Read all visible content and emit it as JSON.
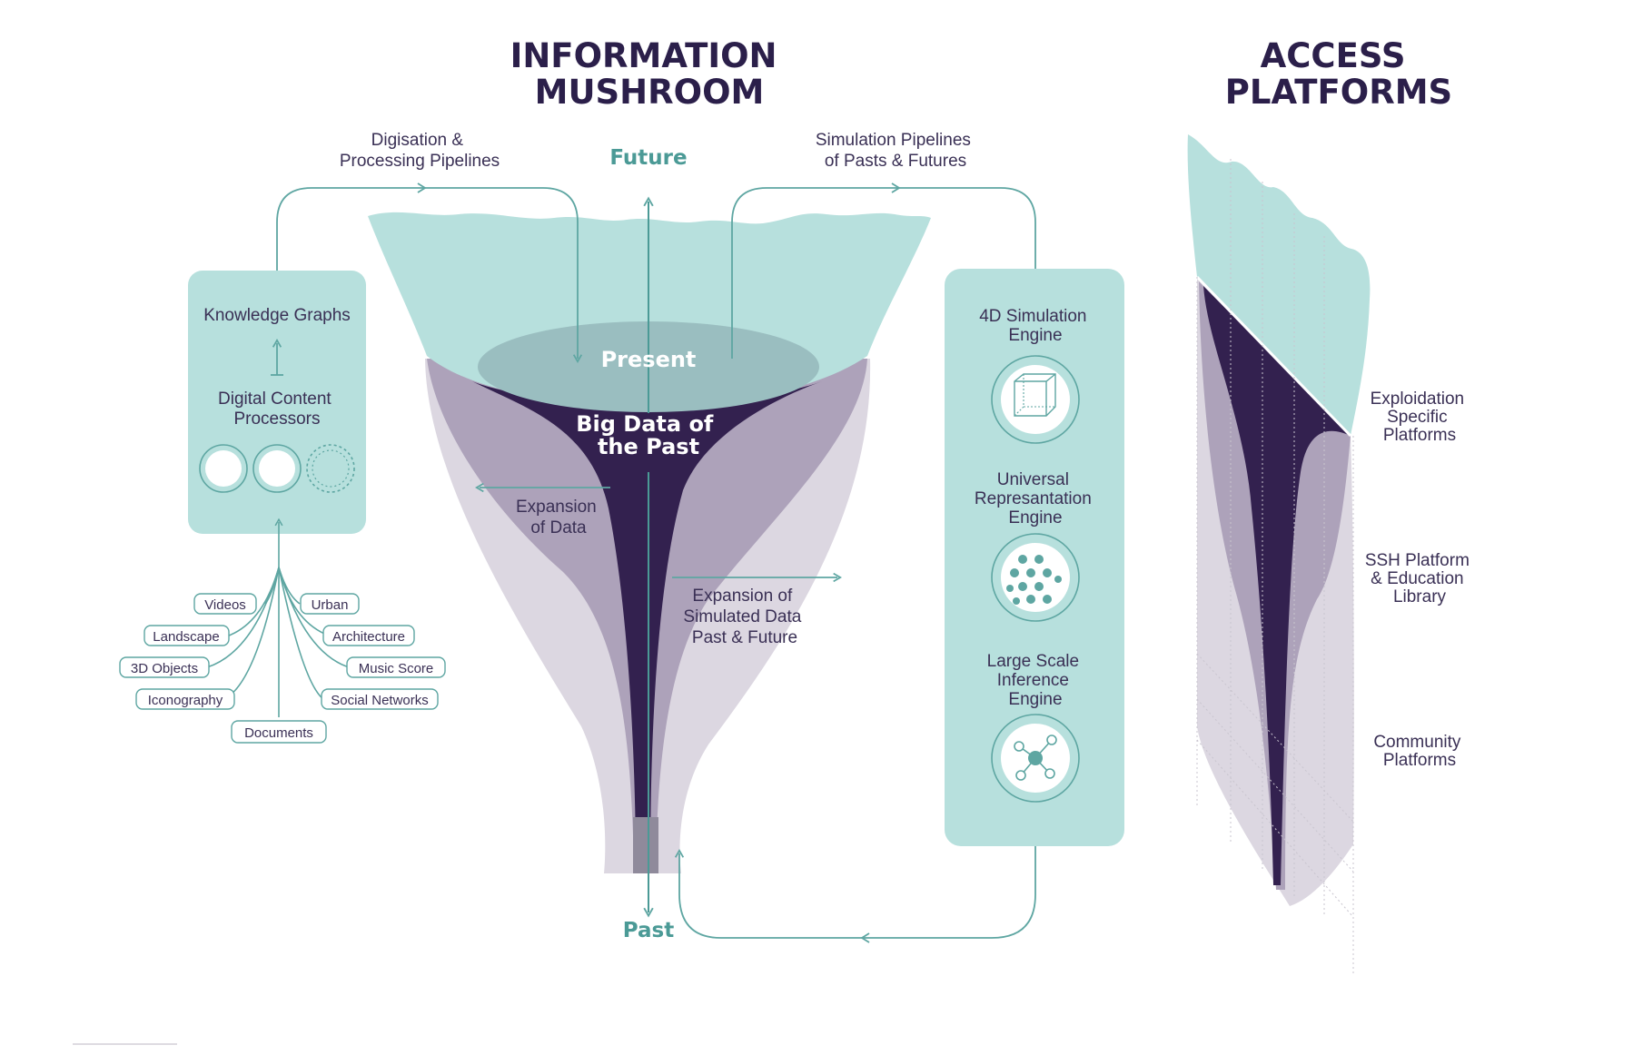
{
  "titles": {
    "mushroom": [
      "INFORMATION",
      "MUSHROOM"
    ],
    "access": [
      "ACCESS",
      "PLATFORMS"
    ]
  },
  "pipelines": {
    "digitisation": [
      "Digisation &",
      "Processing Pipelines"
    ],
    "simulation": [
      "Simulation Pipelines",
      "of Pasts & Futures"
    ]
  },
  "axis": {
    "future": "Future",
    "past": "Past"
  },
  "mushroom": {
    "present": "Present",
    "big_data": [
      "Big Data of",
      "the Past"
    ],
    "expansion_data": [
      "Expansion",
      "of Data"
    ],
    "expansion_simulated": [
      "Expansion of",
      "Simulated Data",
      "Past & Future"
    ]
  },
  "left_panel": {
    "knowledge_graphs": "Knowledge Graphs",
    "processors": [
      "Digital Content",
      "Processors"
    ]
  },
  "sources": [
    "Videos",
    "Urban",
    "Landscape",
    "Architecture",
    "3D Objects",
    "Music Score",
    "Iconography",
    "Social Networks",
    "Documents"
  ],
  "engines": [
    {
      "lines": [
        "4D Simulation",
        "Engine"
      ],
      "icon": "cube-icon"
    },
    {
      "lines": [
        "Universal",
        "Represantation",
        "Engine"
      ],
      "icon": "dots-grid-icon"
    },
    {
      "lines": [
        "Large Scale",
        "Inference",
        "Engine"
      ],
      "icon": "network-node-icon"
    }
  ],
  "platforms": [
    [
      "Exploidation",
      "Specific",
      "Platforms"
    ],
    [
      "SSH Platform",
      "& Education",
      "Library"
    ],
    [
      "Community",
      "Platforms"
    ]
  ],
  "colors": {
    "teal_light": "#b7e0dd",
    "teal": "#4b9a96",
    "purple_dark": "#33214f",
    "purple_mid": "#a99db5",
    "purple_light": "#dcd7e1",
    "title": "#2b1f4a"
  }
}
